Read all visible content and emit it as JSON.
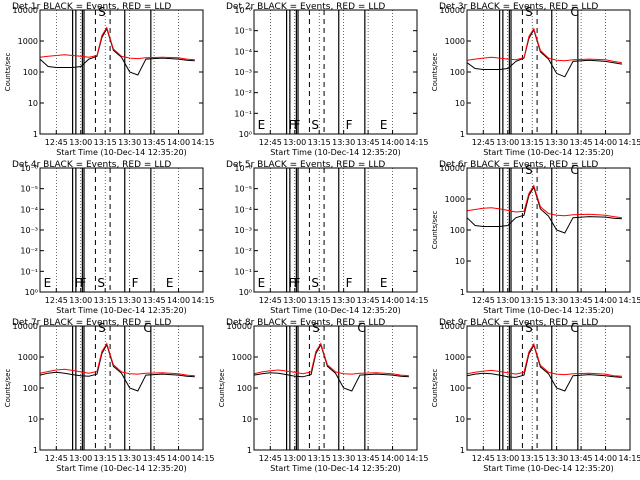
{
  "colors": {
    "events": "#000000",
    "lld": "#ff0000",
    "frame": "#000000",
    "background": "#ffffff"
  },
  "chart_data": [
    {
      "type": "line",
      "title": "Det 1r BLACK = Events, RED = LLD",
      "xlabel": "Start Time (10-Dec-14 12:35:20)",
      "ylabel": "Counts/sec",
      "x_ticks": [
        "12:45",
        "13:00",
        "13:15",
        "13:30",
        "13:45",
        "14:00",
        "14:15"
      ],
      "y_ticks": [
        "1",
        "10",
        "100",
        "1000",
        "10000"
      ],
      "y_scale": "log",
      "ylim": [
        1,
        10000
      ],
      "markers": [
        "S"
      ],
      "has_data": true,
      "series": [
        {
          "name": "Events",
          "x": [
            "12:35",
            "12:40",
            "12:45",
            "12:50",
            "12:55",
            "13:00",
            "13:05",
            "13:10",
            "13:13",
            "13:16",
            "13:20",
            "13:25",
            "13:30",
            "13:35",
            "13:40",
            "13:50",
            "14:00",
            "14:05",
            "14:10"
          ],
          "y": [
            260,
            150,
            140,
            140,
            140,
            150,
            260,
            320,
            1300,
            2500,
            500,
            300,
            100,
            80,
            260,
            280,
            260,
            240,
            230
          ]
        },
        {
          "name": "LLD",
          "x": [
            "12:35",
            "12:40",
            "12:45",
            "12:50",
            "12:55",
            "13:00",
            "13:05",
            "13:10",
            "13:13",
            "13:16",
            "13:20",
            "13:25",
            "13:30",
            "13:35",
            "13:40",
            "13:50",
            "14:00",
            "14:05",
            "14:10"
          ],
          "y": [
            300,
            320,
            340,
            360,
            340,
            320,
            300,
            340,
            1500,
            2700,
            550,
            320,
            280,
            270,
            290,
            300,
            290,
            260,
            250
          ]
        }
      ]
    },
    {
      "type": "line",
      "title": "Det 2r BLACK = Events, RED = LLD",
      "xlabel": "Start Time (10-Dec-14 12:35:20)",
      "ylabel": "",
      "x_ticks": [
        "12:45",
        "13:00",
        "13:15",
        "13:30",
        "13:45",
        "14:00",
        "14:15"
      ],
      "y_ticks": [
        "10⁰",
        "10⁻¹",
        "10⁻²",
        "10⁻³",
        "10⁻⁴",
        "10⁻⁵",
        "10⁻⁶"
      ],
      "y_scale": "log",
      "markers": [
        "E",
        "F",
        "F",
        "S",
        "F",
        "E"
      ],
      "has_data": false,
      "series": []
    },
    {
      "type": "line",
      "title": "Det 3r BLACK = Events, RED = LLD",
      "xlabel": "Start Time (10-Dec-14 12:35:20)",
      "ylabel": "Counts/sec",
      "x_ticks": [
        "12:45",
        "13:00",
        "13:15",
        "13:30",
        "13:45",
        "14:00",
        "14:15"
      ],
      "y_ticks": [
        "1",
        "10",
        "100",
        "1000",
        "10000"
      ],
      "y_scale": "log",
      "ylim": [
        1,
        10000
      ],
      "markers": [
        "S",
        "C"
      ],
      "has_data": true,
      "series": [
        {
          "name": "Events",
          "x": [
            "12:35",
            "12:40",
            "12:45",
            "12:50",
            "12:55",
            "13:00",
            "13:05",
            "13:10",
            "13:13",
            "13:16",
            "13:20",
            "13:25",
            "13:30",
            "13:35",
            "13:40",
            "13:50",
            "14:00",
            "14:05",
            "14:10"
          ],
          "y": [
            200,
            130,
            120,
            120,
            120,
            130,
            220,
            280,
            1200,
            2300,
            450,
            260,
            90,
            70,
            220,
            240,
            220,
            200,
            180
          ]
        },
        {
          "name": "LLD",
          "x": [
            "12:35",
            "12:40",
            "12:45",
            "12:50",
            "12:55",
            "13:00",
            "13:05",
            "13:10",
            "13:13",
            "13:16",
            "13:20",
            "13:25",
            "13:30",
            "13:35",
            "13:40",
            "13:50",
            "14:00",
            "14:05",
            "14:10"
          ],
          "y": [
            240,
            260,
            280,
            300,
            280,
            260,
            250,
            290,
            1400,
            2500,
            500,
            280,
            240,
            230,
            250,
            260,
            250,
            220,
            200
          ]
        }
      ]
    },
    {
      "type": "line",
      "title": "Det 4r BLACK = Events, RED = LLD",
      "xlabel": "Start Time (10-Dec-14 12:35:20)",
      "ylabel": "",
      "x_ticks": [
        "12:45",
        "13:00",
        "13:15",
        "13:30",
        "13:45",
        "14:00",
        "14:15"
      ],
      "y_ticks": [
        "10⁰",
        "10⁻¹",
        "10⁻²",
        "10⁻³",
        "10⁻⁴",
        "10⁻⁵",
        "10⁻⁶"
      ],
      "y_scale": "log",
      "markers": [
        "E",
        "F",
        "F",
        "S",
        "F",
        "E"
      ],
      "has_data": false,
      "series": []
    },
    {
      "type": "line",
      "title": "Det 5r BLACK = Events, RED = LLD",
      "xlabel": "Start Time (10-Dec-14 12:35:20)",
      "ylabel": "",
      "x_ticks": [
        "12:45",
        "13:00",
        "13:15",
        "13:30",
        "13:45",
        "14:00",
        "14:15"
      ],
      "y_ticks": [
        "10⁰",
        "10⁻¹",
        "10⁻²",
        "10⁻³",
        "10⁻⁴",
        "10⁻⁵",
        "10⁻⁶"
      ],
      "y_scale": "log",
      "markers": [
        "E",
        "F",
        "F",
        "S",
        "F",
        "E"
      ],
      "has_data": false,
      "series": []
    },
    {
      "type": "line",
      "title": "Det 6r BLACK = Events, RED = LLD",
      "xlabel": "Start Time (10-Dec-14 12:35:20)",
      "ylabel": "Counts/sec",
      "x_ticks": [
        "12:45",
        "13:00",
        "13:15",
        "13:30",
        "13:45",
        "14:00",
        "14:15"
      ],
      "y_ticks": [
        "1",
        "10",
        "100",
        "1000",
        "10000"
      ],
      "y_scale": "log",
      "ylim": [
        1,
        10000
      ],
      "markers": [
        "S",
        "C"
      ],
      "has_data": true,
      "series": [
        {
          "name": "Events",
          "x": [
            "12:35",
            "12:40",
            "12:45",
            "12:50",
            "12:55",
            "13:00",
            "13:05",
            "13:10",
            "13:13",
            "13:16",
            "13:20",
            "13:25",
            "13:30",
            "13:35",
            "13:40",
            "13:50",
            "14:00",
            "14:05",
            "14:10"
          ],
          "y": [
            250,
            140,
            130,
            130,
            130,
            140,
            250,
            300,
            1300,
            2400,
            480,
            280,
            100,
            80,
            250,
            270,
            260,
            240,
            230
          ]
        },
        {
          "name": "LLD",
          "x": [
            "12:35",
            "12:40",
            "12:45",
            "12:50",
            "12:55",
            "13:00",
            "13:05",
            "13:10",
            "13:13",
            "13:16",
            "13:20",
            "13:25",
            "13:30",
            "13:35",
            "13:40",
            "13:50",
            "14:00",
            "14:05",
            "14:10"
          ],
          "y": [
            420,
            460,
            500,
            520,
            480,
            430,
            380,
            400,
            1500,
            2700,
            560,
            340,
            300,
            290,
            310,
            320,
            300,
            270,
            250
          ]
        }
      ]
    },
    {
      "type": "line",
      "title": "Det 7r BLACK = Events, RED = LLD",
      "xlabel": "Start Time (10-Dec-14 12:35:20)",
      "ylabel": "Counts/sec",
      "x_ticks": [
        "12:45",
        "13:00",
        "13:15",
        "13:30",
        "13:45",
        "14:00",
        "14:15"
      ],
      "y_ticks": [
        "1",
        "10",
        "100",
        "1000",
        "10000"
      ],
      "y_scale": "log",
      "ylim": [
        1,
        10000
      ],
      "markers": [
        "S",
        "C"
      ],
      "has_data": true,
      "series": [
        {
          "name": "Events",
          "x": [
            "12:35",
            "12:40",
            "12:45",
            "12:50",
            "12:55",
            "13:00",
            "13:05",
            "13:10",
            "13:13",
            "13:16",
            "13:20",
            "13:25",
            "13:30",
            "13:35",
            "13:40",
            "13:50",
            "14:00",
            "14:05",
            "14:10"
          ],
          "y": [
            260,
            300,
            320,
            300,
            270,
            250,
            240,
            280,
            1300,
            2500,
            500,
            300,
            100,
            80,
            260,
            280,
            260,
            240,
            230
          ]
        },
        {
          "name": "LLD",
          "x": [
            "12:35",
            "12:40",
            "12:45",
            "12:50",
            "12:55",
            "13:00",
            "13:05",
            "13:10",
            "13:13",
            "13:16",
            "13:20",
            "13:25",
            "13:30",
            "13:35",
            "13:40",
            "13:50",
            "14:00",
            "14:05",
            "14:10"
          ],
          "y": [
            300,
            340,
            380,
            400,
            370,
            330,
            300,
            340,
            1500,
            2700,
            560,
            330,
            290,
            280,
            300,
            310,
            290,
            260,
            250
          ]
        }
      ]
    },
    {
      "type": "line",
      "title": "Det 8r BLACK = Events, RED = LLD",
      "xlabel": "Start Time (10-Dec-14 12:35:20)",
      "ylabel": "Counts/sec",
      "x_ticks": [
        "12:45",
        "13:00",
        "13:15",
        "13:30",
        "13:45",
        "14:00",
        "14:15"
      ],
      "y_ticks": [
        "1",
        "10",
        "100",
        "1000",
        "10000"
      ],
      "y_scale": "log",
      "ylim": [
        1,
        10000
      ],
      "markers": [
        "S",
        "C"
      ],
      "has_data": true,
      "series": [
        {
          "name": "Events",
          "x": [
            "12:35",
            "12:40",
            "12:45",
            "12:50",
            "12:55",
            "13:00",
            "13:05",
            "13:10",
            "13:13",
            "13:16",
            "13:20",
            "13:25",
            "13:30",
            "13:35",
            "13:40",
            "13:50",
            "14:00",
            "14:05",
            "14:10"
          ],
          "y": [
            260,
            290,
            310,
            300,
            270,
            240,
            230,
            270,
            1300,
            2500,
            500,
            300,
            100,
            80,
            260,
            280,
            260,
            240,
            230
          ]
        },
        {
          "name": "LLD",
          "x": [
            "12:35",
            "12:40",
            "12:45",
            "12:50",
            "12:55",
            "13:00",
            "13:05",
            "13:10",
            "13:13",
            "13:16",
            "13:20",
            "13:25",
            "13:30",
            "13:35",
            "13:40",
            "13:50",
            "14:00",
            "14:05",
            "14:10"
          ],
          "y": [
            290,
            330,
            360,
            380,
            350,
            320,
            290,
            330,
            1500,
            2700,
            560,
            330,
            290,
            280,
            300,
            310,
            290,
            260,
            250
          ]
        }
      ]
    },
    {
      "type": "line",
      "title": "Det 9r BLACK = Events, RED = LLD",
      "xlabel": "Start Time (10-Dec-14 12:35:20)",
      "ylabel": "Counts/sec",
      "x_ticks": [
        "12:45",
        "13:00",
        "13:15",
        "13:30",
        "13:45",
        "14:00",
        "14:15"
      ],
      "y_ticks": [
        "1",
        "10",
        "100",
        "1000",
        "10000"
      ],
      "y_scale": "log",
      "ylim": [
        1,
        10000
      ],
      "markers": [
        "S",
        "C"
      ],
      "has_data": true,
      "series": [
        {
          "name": "Events",
          "x": [
            "12:35",
            "12:40",
            "12:45",
            "12:50",
            "12:55",
            "13:00",
            "13:05",
            "13:10",
            "13:13",
            "13:16",
            "13:20",
            "13:25",
            "13:30",
            "13:35",
            "13:40",
            "13:50",
            "14:00",
            "14:05",
            "14:10"
          ],
          "y": [
            250,
            280,
            300,
            290,
            260,
            230,
            220,
            260,
            1250,
            2400,
            480,
            290,
            100,
            80,
            250,
            270,
            250,
            230,
            220
          ]
        },
        {
          "name": "LLD",
          "x": [
            "12:35",
            "12:40",
            "12:45",
            "12:50",
            "12:55",
            "13:00",
            "13:05",
            "13:10",
            "13:13",
            "13:16",
            "13:20",
            "13:25",
            "13:30",
            "13:35",
            "13:40",
            "13:50",
            "14:00",
            "14:05",
            "14:10"
          ],
          "y": [
            290,
            320,
            350,
            370,
            340,
            310,
            280,
            320,
            1450,
            2600,
            540,
            320,
            280,
            270,
            290,
            300,
            280,
            250,
            240
          ]
        }
      ]
    }
  ]
}
